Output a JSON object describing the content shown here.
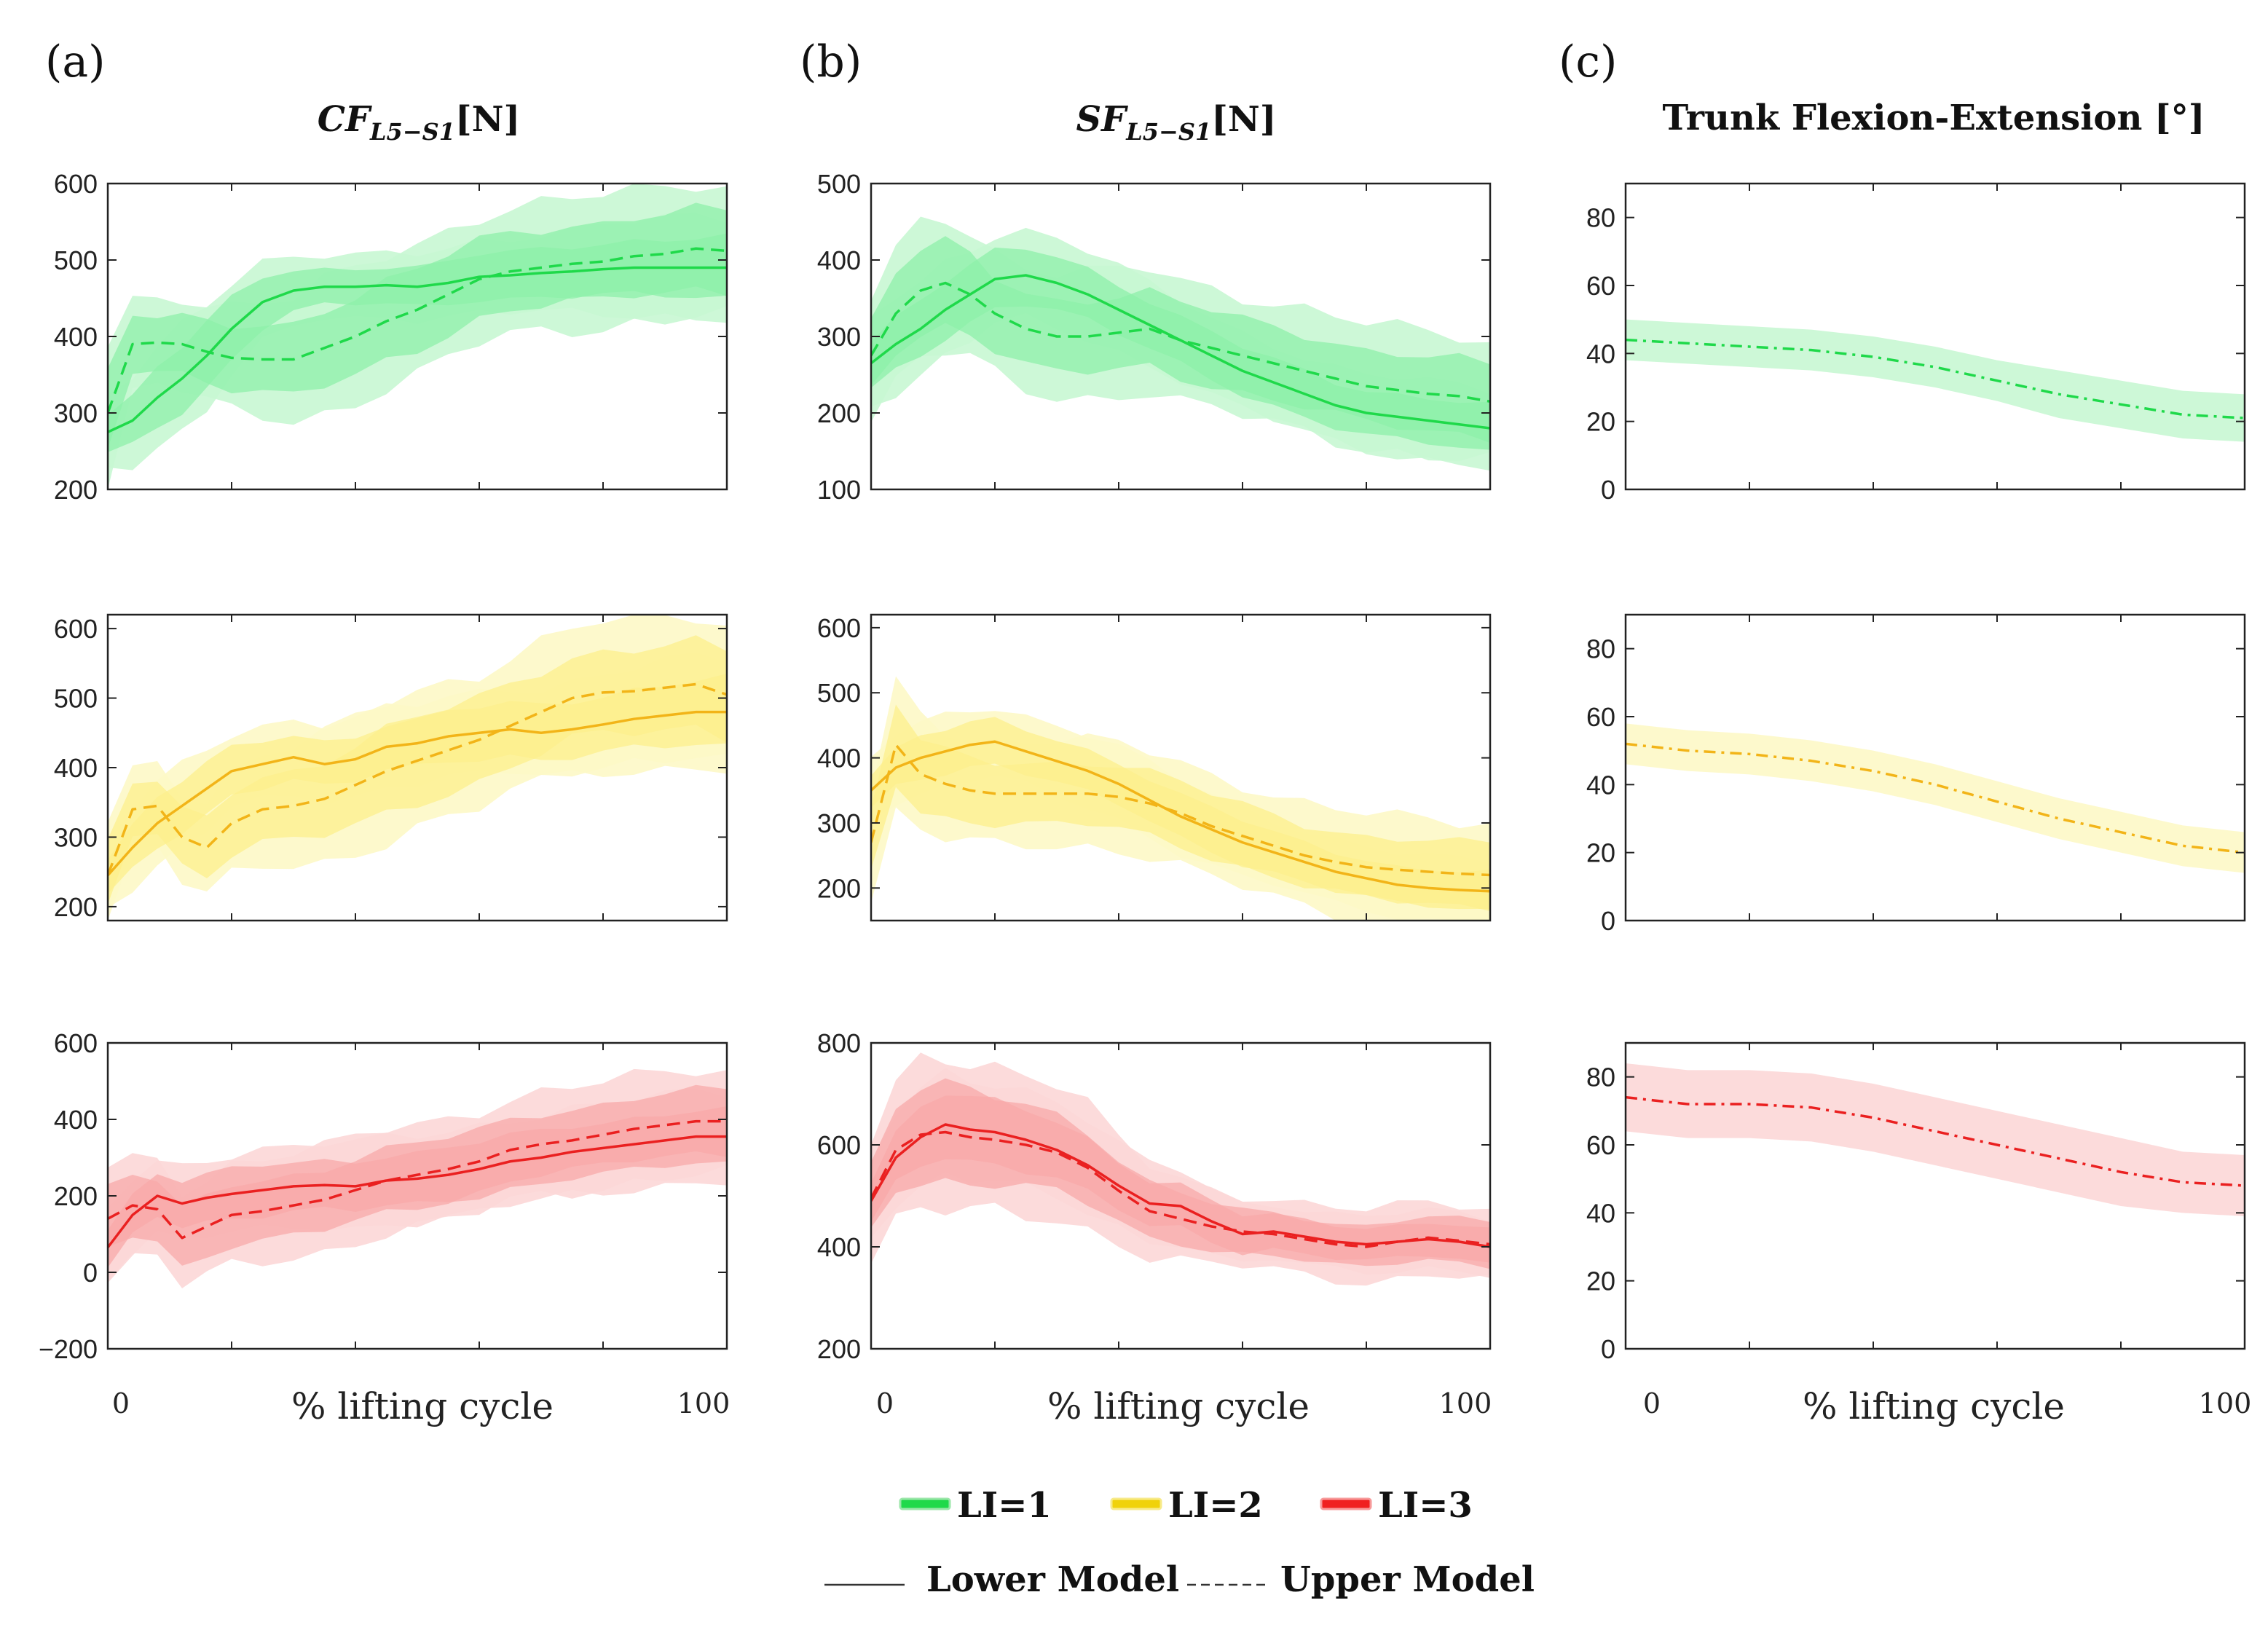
{
  "panel_letters": [
    "(a)",
    "(b)",
    "(c)"
  ],
  "column_titles": [
    {
      "main": "CF",
      "sub": "L5−S1",
      "unit": "[N]"
    },
    {
      "main": "SF",
      "sub": "L5−S1",
      "unit": "[N]"
    },
    {
      "main": "Trunk Flexion-Extension [°]",
      "sub": "",
      "unit": ""
    }
  ],
  "x_axis": {
    "label": "% lifting cycle",
    "start_label": "0",
    "end_label": "100"
  },
  "legend": {
    "li_items": [
      {
        "label": "LI=1",
        "color": "#20d94a"
      },
      {
        "label": "LI=2",
        "color": "#f0d20a"
      },
      {
        "label": "LI=3",
        "color": "#f02020"
      }
    ],
    "lower_model": "Lower Model",
    "upper_model": "Upper Model"
  },
  "colors": {
    "LI=1": {
      "line": "#1fd94a",
      "outer": "#c8f7d3",
      "inner": "#8ef0aa"
    },
    "LI=2": {
      "line": "#f2b418",
      "outer": "#fdf8c6",
      "inner": "#fcef8c"
    },
    "LI=3": {
      "line": "#ea2020",
      "outer": "#fcd7d7",
      "inner": "#f8a9a9"
    }
  },
  "chart_data": [
    {
      "type": "line",
      "panel": "(a)",
      "row": 1,
      "li": "LI=1",
      "title": "CF_L5-S1 [N]",
      "xlabel": "% lifting cycle",
      "ylim": [
        200,
        600
      ],
      "yticks": [
        "600",
        "500",
        "400",
        "300",
        "200"
      ],
      "x": [
        0,
        4,
        8,
        12,
        16,
        20,
        25,
        30,
        35,
        40,
        45,
        50,
        55,
        60,
        65,
        70,
        75,
        80,
        85,
        90,
        95,
        100
      ],
      "series": [
        {
          "name": "Lower Model",
          "style": "solid",
          "values": [
            275,
            290,
            320,
            345,
            375,
            410,
            445,
            460,
            465,
            465,
            467,
            465,
            470,
            478,
            480,
            483,
            485,
            488,
            490,
            490,
            490,
            490
          ],
          "sd": [
            45,
            55,
            65,
            70,
            70,
            65,
            55,
            45,
            40,
            40,
            40,
            42,
            45,
            48,
            50,
            52,
            55,
            58,
            60,
            62,
            65,
            65
          ]
        },
        {
          "name": "Upper Model",
          "style": "dashed",
          "values": [
            300,
            390,
            392,
            390,
            380,
            372,
            370,
            370,
            385,
            400,
            420,
            435,
            455,
            475,
            485,
            490,
            495,
            498,
            505,
            508,
            515,
            512
          ],
          "sd": [
            90,
            60,
            55,
            60,
            65,
            70,
            75,
            80,
            85,
            85,
            85,
            85,
            85,
            85,
            85,
            85,
            85,
            85,
            85,
            85,
            85,
            85
          ]
        }
      ]
    },
    {
      "type": "line",
      "panel": "(a)",
      "row": 2,
      "li": "LI=2",
      "title": "CF_L5-S1 [N]",
      "xlabel": "% lifting cycle",
      "ylim": [
        180,
        620
      ],
      "yticks": [
        "600",
        "500",
        "400",
        "300",
        "200"
      ],
      "x": [
        0,
        4,
        8,
        12,
        16,
        20,
        25,
        30,
        35,
        40,
        45,
        50,
        55,
        60,
        65,
        70,
        75,
        80,
        85,
        90,
        95,
        100
      ],
      "series": [
        {
          "name": "Lower Model",
          "style": "solid",
          "values": [
            245,
            285,
            320,
            345,
            370,
            395,
            405,
            415,
            405,
            412,
            430,
            435,
            445,
            450,
            455,
            450,
            455,
            462,
            470,
            475,
            480,
            480
          ],
          "sd": [
            45,
            55,
            60,
            60,
            60,
            55,
            55,
            55,
            55,
            55,
            55,
            55,
            58,
            60,
            62,
            65,
            68,
            70,
            72,
            75,
            78,
            80
          ]
        },
        {
          "name": "Upper Model",
          "style": "dashed",
          "values": [
            245,
            340,
            345,
            300,
            285,
            320,
            340,
            345,
            355,
            375,
            395,
            410,
            425,
            440,
            460,
            480,
            500,
            508,
            510,
            515,
            520,
            505
          ],
          "sd": [
            80,
            60,
            60,
            65,
            70,
            75,
            80,
            85,
            90,
            95,
            100,
            100,
            100,
            100,
            100,
            100,
            100,
            100,
            100,
            100,
            100,
            100
          ]
        }
      ]
    },
    {
      "type": "line",
      "panel": "(a)",
      "row": 3,
      "li": "LI=3",
      "title": "CF_L5-S1 [N]",
      "xlabel": "% lifting cycle",
      "ylim": [
        -200,
        600
      ],
      "yticks": [
        "600",
        "400",
        "200",
        "0",
        "−200"
      ],
      "x": [
        0,
        4,
        8,
        12,
        16,
        20,
        25,
        30,
        35,
        40,
        45,
        50,
        55,
        60,
        65,
        70,
        75,
        80,
        85,
        90,
        95,
        100
      ],
      "series": [
        {
          "name": "Lower Model",
          "style": "solid",
          "values": [
            65,
            150,
            200,
            180,
            195,
            205,
            215,
            225,
            228,
            225,
            240,
            245,
            255,
            270,
            290,
            300,
            315,
            325,
            335,
            345,
            355,
            355
          ],
          "sd": [
            90,
            90,
            90,
            95,
            100,
            105,
            110,
            110,
            110,
            110,
            110,
            110,
            110,
            115,
            115,
            115,
            115,
            115,
            115,
            115,
            115,
            115
          ]
        },
        {
          "name": "Upper Model",
          "style": "dashed",
          "values": [
            140,
            175,
            165,
            90,
            120,
            150,
            160,
            175,
            190,
            215,
            240,
            255,
            270,
            290,
            320,
            335,
            345,
            360,
            375,
            385,
            395,
            395
          ],
          "sd": [
            140,
            130,
            125,
            125,
            130,
            135,
            135,
            135,
            135,
            135,
            135,
            135,
            135,
            135,
            135,
            135,
            135,
            135,
            135,
            135,
            135,
            135
          ]
        }
      ]
    },
    {
      "type": "line",
      "panel": "(b)",
      "row": 1,
      "li": "LI=1",
      "title": "SF_L5-S1 [N]",
      "xlabel": "% lifting cycle",
      "ylim": [
        100,
        500
      ],
      "yticks": [
        "500",
        "400",
        "300",
        "200",
        "100"
      ],
      "x": [
        0,
        4,
        8,
        12,
        16,
        20,
        25,
        30,
        35,
        40,
        45,
        50,
        55,
        60,
        65,
        70,
        75,
        80,
        85,
        90,
        95,
        100
      ],
      "series": [
        {
          "name": "Lower Model",
          "style": "solid",
          "values": [
            265,
            290,
            310,
            335,
            355,
            375,
            380,
            370,
            355,
            335,
            315,
            295,
            275,
            255,
            240,
            225,
            210,
            200,
            195,
            190,
            185,
            180
          ],
          "sd": [
            55,
            60,
            60,
            60,
            60,
            60,
            60,
            60,
            58,
            55,
            52,
            50,
            50,
            50,
            50,
            50,
            50,
            50,
            50,
            50,
            50,
            50
          ]
        },
        {
          "name": "Upper Model",
          "style": "dashed",
          "values": [
            275,
            330,
            360,
            370,
            355,
            330,
            310,
            300,
            300,
            305,
            310,
            295,
            285,
            275,
            265,
            255,
            245,
            235,
            230,
            225,
            222,
            215
          ],
          "sd": [
            75,
            85,
            90,
            90,
            85,
            80,
            80,
            80,
            80,
            80,
            80,
            80,
            80,
            80,
            80,
            80,
            80,
            80,
            80,
            80,
            80,
            78
          ]
        }
      ]
    },
    {
      "type": "line",
      "panel": "(b)",
      "row": 2,
      "li": "LI=2",
      "title": "SF_L5-S1 [N]",
      "xlabel": "% lifting cycle",
      "ylim": [
        150,
        620
      ],
      "yticks": [
        "600",
        "500",
        "400",
        "300",
        "200"
      ],
      "x": [
        0,
        4,
        8,
        12,
        16,
        20,
        25,
        30,
        35,
        40,
        45,
        50,
        55,
        60,
        65,
        70,
        75,
        80,
        85,
        90,
        95,
        100
      ],
      "series": [
        {
          "name": "Lower Model",
          "style": "solid",
          "values": [
            350,
            385,
            400,
            410,
            420,
            425,
            410,
            395,
            380,
            360,
            335,
            310,
            290,
            270,
            255,
            240,
            225,
            215,
            205,
            200,
            197,
            195
          ],
          "sd": [
            45,
            50,
            55,
            55,
            55,
            55,
            55,
            55,
            55,
            55,
            55,
            55,
            55,
            55,
            50,
            50,
            50,
            48,
            48,
            48,
            48,
            48
          ]
        },
        {
          "name": "Upper Model",
          "style": "dashed",
          "values": [
            270,
            420,
            375,
            360,
            350,
            345,
            345,
            345,
            345,
            340,
            330,
            315,
            295,
            280,
            265,
            250,
            240,
            232,
            228,
            225,
            222,
            220
          ],
          "sd": [
            80,
            100,
            90,
            85,
            80,
            80,
            80,
            80,
            80,
            80,
            80,
            80,
            80,
            80,
            80,
            80,
            80,
            80,
            80,
            80,
            80,
            80
          ]
        }
      ]
    },
    {
      "type": "line",
      "panel": "(b)",
      "row": 3,
      "li": "LI=3",
      "title": "SF_L5-S1 [N]",
      "xlabel": "% lifting cycle",
      "ylim": [
        200,
        800
      ],
      "yticks": [
        "800",
        "600",
        "400",
        "200"
      ],
      "x": [
        0,
        4,
        8,
        12,
        16,
        20,
        25,
        30,
        35,
        40,
        45,
        50,
        55,
        60,
        65,
        70,
        75,
        80,
        85,
        90,
        95,
        100
      ],
      "series": [
        {
          "name": "Lower Model",
          "style": "solid",
          "values": [
            490,
            575,
            615,
            640,
            630,
            625,
            610,
            590,
            560,
            520,
            485,
            480,
            450,
            425,
            430,
            420,
            410,
            405,
            410,
            415,
            410,
            400
          ],
          "sd": [
            70,
            85,
            95,
            100,
            100,
            100,
            100,
            95,
            90,
            80,
            75,
            70,
            65,
            60,
            55,
            55,
            55,
            55,
            55,
            55,
            55,
            55
          ]
        },
        {
          "name": "Upper Model",
          "style": "dashed",
          "values": [
            495,
            590,
            620,
            625,
            615,
            610,
            600,
            585,
            555,
            510,
            470,
            455,
            440,
            430,
            425,
            415,
            405,
            400,
            410,
            418,
            412,
            405
          ],
          "sd": [
            110,
            130,
            150,
            155,
            150,
            145,
            140,
            130,
            120,
            100,
            90,
            80,
            75,
            70,
            70,
            70,
            70,
            70,
            70,
            70,
            70,
            70
          ]
        }
      ]
    },
    {
      "type": "line",
      "panel": "(c)",
      "row": 1,
      "li": "LI=1",
      "title": "Trunk Flexion-Extension [°]",
      "xlabel": "% lifting cycle",
      "ylim": [
        0,
        90
      ],
      "yticks": [
        "80",
        "60",
        "40",
        "20",
        "0"
      ],
      "x": [
        0,
        10,
        20,
        30,
        40,
        50,
        60,
        70,
        80,
        90,
        100
      ],
      "series": [
        {
          "name": "Upper Model",
          "style": "dashdot",
          "values": [
            44,
            43,
            42,
            41,
            39,
            36,
            32,
            28,
            25,
            22,
            21
          ],
          "sd": [
            6,
            6,
            6,
            6,
            6,
            6,
            6,
            7,
            7,
            7,
            7
          ]
        }
      ]
    },
    {
      "type": "line",
      "panel": "(c)",
      "row": 2,
      "li": "LI=2",
      "title": "Trunk Flexion-Extension [°]",
      "xlabel": "% lifting cycle",
      "ylim": [
        0,
        90
      ],
      "yticks": [
        "80",
        "60",
        "40",
        "20",
        "0"
      ],
      "x": [
        0,
        10,
        20,
        30,
        40,
        50,
        60,
        70,
        80,
        90,
        100
      ],
      "series": [
        {
          "name": "Upper Model",
          "style": "dashdot",
          "values": [
            52,
            50,
            49,
            47,
            44,
            40,
            35,
            30,
            26,
            22,
            20
          ],
          "sd": [
            6,
            6,
            6,
            6,
            6,
            6,
            6,
            6,
            6,
            6,
            6
          ]
        }
      ]
    },
    {
      "type": "line",
      "panel": "(c)",
      "row": 3,
      "li": "LI=3",
      "title": "Trunk Flexion-Extension [°]",
      "xlabel": "% lifting cycle",
      "ylim": [
        0,
        90
      ],
      "yticks": [
        "80",
        "60",
        "40",
        "20",
        "0"
      ],
      "x": [
        0,
        10,
        20,
        30,
        40,
        50,
        60,
        70,
        80,
        90,
        100
      ],
      "series": [
        {
          "name": "Upper Model",
          "style": "dashdot",
          "values": [
            74,
            72,
            72,
            71,
            68,
            64,
            60,
            56,
            52,
            49,
            48
          ],
          "sd": [
            10,
            10,
            10,
            10,
            10,
            10,
            10,
            10,
            10,
            9,
            9
          ]
        }
      ]
    }
  ]
}
